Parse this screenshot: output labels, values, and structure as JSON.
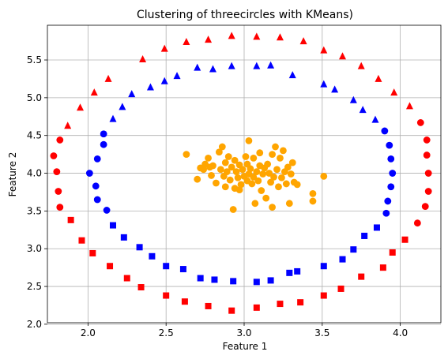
{
  "chart_data": {
    "type": "scatter",
    "title": "Clustering of threecircles with KMeans)",
    "xlabel": "Feature 1",
    "ylabel": "Feature 2",
    "xlim": [
      1.74,
      4.26
    ],
    "ylim": [
      2.02,
      5.96
    ],
    "grid": true,
    "xticks": [
      2.0,
      2.5,
      3.0,
      3.5,
      4.0
    ],
    "xtick_labels": [
      "2.0",
      "2.5",
      "3.0",
      "3.5",
      "4.0"
    ],
    "yticks": [
      2.0,
      2.5,
      3.0,
      3.5,
      4.0,
      4.5,
      5.0,
      5.5
    ],
    "ytick_labels": [
      "2.0",
      "2.5",
      "3.0",
      "3.5",
      "4.0",
      "4.5",
      "5.0",
      "5.5"
    ],
    "series": [
      {
        "color": "#ff0000",
        "marker": "triangle",
        "points": [
          [
            1.87,
            4.63
          ],
          [
            1.95,
            4.87
          ],
          [
            2.04,
            5.07
          ],
          [
            2.13,
            5.25
          ],
          [
            2.35,
            5.51
          ],
          [
            2.49,
            5.65
          ],
          [
            2.63,
            5.74
          ],
          [
            2.77,
            5.77
          ],
          [
            2.92,
            5.82
          ],
          [
            3.08,
            5.81
          ],
          [
            3.23,
            5.8
          ],
          [
            3.38,
            5.75
          ],
          [
            3.51,
            5.63
          ],
          [
            3.63,
            5.55
          ],
          [
            3.75,
            5.42
          ],
          [
            3.86,
            5.25
          ],
          [
            3.96,
            5.07
          ],
          [
            4.06,
            4.89
          ]
        ]
      },
      {
        "color": "#ff0000",
        "marker": "circle",
        "points": [
          [
            1.82,
            4.44
          ],
          [
            1.78,
            4.23
          ],
          [
            1.8,
            4.02
          ],
          [
            1.81,
            3.76
          ],
          [
            1.82,
            3.55
          ],
          [
            4.13,
            4.67
          ],
          [
            4.17,
            4.44
          ],
          [
            4.17,
            4.24
          ],
          [
            4.18,
            4.0
          ],
          [
            4.18,
            3.76
          ],
          [
            4.16,
            3.56
          ],
          [
            4.11,
            3.34
          ]
        ]
      },
      {
        "color": "#ff0000",
        "marker": "square",
        "points": [
          [
            1.89,
            3.38
          ],
          [
            1.96,
            3.11
          ],
          [
            2.03,
            2.94
          ],
          [
            2.14,
            2.77
          ],
          [
            2.25,
            2.61
          ],
          [
            2.34,
            2.49
          ],
          [
            2.5,
            2.38
          ],
          [
            2.62,
            2.3
          ],
          [
            2.77,
            2.24
          ],
          [
            2.92,
            2.18
          ],
          [
            3.08,
            2.22
          ],
          [
            3.23,
            2.27
          ],
          [
            3.36,
            2.29
          ],
          [
            3.51,
            2.38
          ],
          [
            3.62,
            2.47
          ],
          [
            3.75,
            2.63
          ],
          [
            3.89,
            2.75
          ],
          [
            3.95,
            2.95
          ],
          [
            4.03,
            3.12
          ]
        ]
      },
      {
        "color": "#0000ff",
        "marker": "triangle",
        "points": [
          [
            2.16,
            4.72
          ],
          [
            2.22,
            4.88
          ],
          [
            2.28,
            5.05
          ],
          [
            2.4,
            5.14
          ],
          [
            2.49,
            5.22
          ],
          [
            2.57,
            5.29
          ],
          [
            2.7,
            5.4
          ],
          [
            2.8,
            5.38
          ],
          [
            2.92,
            5.42
          ],
          [
            3.08,
            5.42
          ],
          [
            3.17,
            5.43
          ],
          [
            3.31,
            5.3
          ],
          [
            3.51,
            5.18
          ],
          [
            3.58,
            5.11
          ],
          [
            3.7,
            4.97
          ],
          [
            3.76,
            4.84
          ],
          [
            3.84,
            4.71
          ]
        ]
      },
      {
        "color": "#0000ff",
        "marker": "circle",
        "points": [
          [
            2.1,
            4.52
          ],
          [
            2.1,
            4.38
          ],
          [
            2.06,
            4.19
          ],
          [
            2.01,
            4.0
          ],
          [
            2.05,
            3.83
          ],
          [
            2.06,
            3.65
          ],
          [
            2.12,
            3.51
          ],
          [
            3.9,
            4.56
          ],
          [
            3.93,
            4.37
          ],
          [
            3.94,
            4.19
          ],
          [
            3.95,
            4.0
          ],
          [
            3.94,
            3.82
          ],
          [
            3.92,
            3.63
          ],
          [
            3.91,
            3.47
          ]
        ]
      },
      {
        "color": "#0000ff",
        "marker": "square",
        "points": [
          [
            2.16,
            3.31
          ],
          [
            2.23,
            3.15
          ],
          [
            2.33,
            3.02
          ],
          [
            2.41,
            2.9
          ],
          [
            2.5,
            2.77
          ],
          [
            2.61,
            2.73
          ],
          [
            2.72,
            2.61
          ],
          [
            2.81,
            2.59
          ],
          [
            2.93,
            2.57
          ],
          [
            3.08,
            2.56
          ],
          [
            3.17,
            2.58
          ],
          [
            3.29,
            2.68
          ],
          [
            3.34,
            2.7
          ],
          [
            3.51,
            2.77
          ],
          [
            3.63,
            2.86
          ],
          [
            3.7,
            2.99
          ],
          [
            3.77,
            3.17
          ],
          [
            3.85,
            3.28
          ]
        ]
      },
      {
        "color": "#ffa500",
        "marker": "circle",
        "points": [
          [
            2.63,
            4.25
          ],
          [
            2.7,
            3.92
          ],
          [
            2.72,
            4.07
          ],
          [
            2.74,
            4.05
          ],
          [
            2.75,
            4.12
          ],
          [
            2.77,
            4.2
          ],
          [
            2.78,
            4.08
          ],
          [
            2.79,
            3.97
          ],
          [
            2.8,
            4.1
          ],
          [
            2.82,
            3.87
          ],
          [
            2.84,
            4.28
          ],
          [
            2.85,
            4.05
          ],
          [
            2.86,
            4.35
          ],
          [
            2.87,
            3.96
          ],
          [
            2.88,
            4.14
          ],
          [
            2.88,
            3.82
          ],
          [
            2.89,
            4.02
          ],
          [
            2.9,
            4.22
          ],
          [
            2.91,
            3.91
          ],
          [
            2.92,
            4.08
          ],
          [
            2.93,
            3.52
          ],
          [
            2.94,
            3.8
          ],
          [
            2.94,
            4.17
          ],
          [
            2.95,
            4.02
          ],
          [
            2.96,
            3.94
          ],
          [
            2.97,
            4.11
          ],
          [
            2.97,
            3.78
          ],
          [
            2.98,
            3.85
          ],
          [
            2.99,
            4.05
          ],
          [
            3.0,
            3.96
          ],
          [
            3.01,
            4.22
          ],
          [
            3.02,
            4.12
          ],
          [
            3.02,
            3.9
          ],
          [
            3.03,
            4.43
          ],
          [
            3.03,
            3.99
          ],
          [
            3.04,
            4.06
          ],
          [
            3.05,
            3.86
          ],
          [
            3.06,
            3.95
          ],
          [
            3.06,
            4.2
          ],
          [
            3.07,
            3.6
          ],
          [
            3.08,
            4.02
          ],
          [
            3.09,
            3.9
          ],
          [
            3.1,
            4.1
          ],
          [
            3.1,
            4.27
          ],
          [
            3.11,
            3.77
          ],
          [
            3.12,
            3.99
          ],
          [
            3.13,
            4.07
          ],
          [
            3.14,
            3.67
          ],
          [
            3.15,
            4.12
          ],
          [
            3.16,
            4.0
          ],
          [
            3.17,
            3.88
          ],
          [
            3.18,
            4.25
          ],
          [
            3.18,
            3.55
          ],
          [
            3.19,
            3.95
          ],
          [
            3.2,
            4.35
          ],
          [
            3.21,
            4.05
          ],
          [
            3.22,
            3.82
          ],
          [
            3.23,
            4.2
          ],
          [
            3.24,
            3.94
          ],
          [
            3.25,
            4.3
          ],
          [
            3.26,
            4.02
          ],
          [
            3.27,
            3.86
          ],
          [
            3.28,
            4.08
          ],
          [
            3.29,
            3.6
          ],
          [
            3.3,
            3.99
          ],
          [
            3.31,
            4.14
          ],
          [
            3.32,
            3.88
          ],
          [
            3.34,
            3.85
          ],
          [
            3.44,
            3.73
          ],
          [
            3.44,
            3.63
          ],
          [
            3.51,
            3.96
          ]
        ]
      }
    ]
  }
}
